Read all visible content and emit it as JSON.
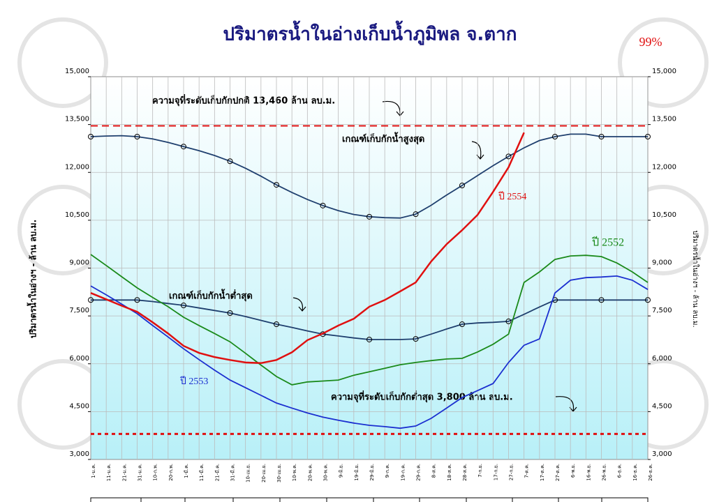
{
  "chart_data": {
    "type": "line",
    "title": "ปริมาตรน้ำในอ่างเก็บน้ำภูมิพล จ.ตาก",
    "subtitle": "99%",
    "ylabel": "ปริมาตรน้ำในอ่างฯ - ล้าน ลบ.ม.",
    "y2label": "ปริมาตรน้ำในอ่างฯ - ล้าน ลบ.ม.",
    "annotations": [
      "ความจุที่ระดับเก็บกักปกติ 13,460 ล้าน ลบ.ม.",
      "ความจุที่ระดับเก็บกักต่ำสุด 3,800 ล้าน ลบ.ม."
    ],
    "ref_lines": [
      {
        "value": 13460,
        "color": "#e01010"
      },
      {
        "value": 3800,
        "color": "#e01010"
      }
    ],
    "categories": [
      "1-ม.ค.",
      "11-ม.ค.",
      "21-ม.ค.",
      "31-ม.ค.",
      "10-ก.พ.",
      "20-ก.พ.",
      "1-มี.ค.",
      "11-มี.ค.",
      "21-มี.ค.",
      "31-มี.ค.",
      "10-เม.ย.",
      "20-เม.ย.",
      "30-เม.ย.",
      "10-พ.ค.",
      "20-พ.ค.",
      "30-พ.ค.",
      "9-มิ.ย.",
      "19-มิ.ย.",
      "29-มิ.ย.",
      "9-ก.ค.",
      "19-ก.ค.",
      "29-ก.ค.",
      "8-ส.ค.",
      "18-ส.ค.",
      "28-ส.ค.",
      "7-ก.ย.",
      "17-ก.ย.",
      "27-ก.ย.",
      "7-ต.ค.",
      "17-ต.ค.",
      "27-ต.ค.",
      "6-พ.ย.",
      "16-พ.ย.",
      "26-พ.ย.",
      "6-ธ.ค.",
      "16-ธ.ค.",
      "26-ธ.ค."
    ],
    "ylim": [
      3000,
      15000
    ],
    "yticks": [
      {
        "value": 3000,
        "label": "3,000"
      },
      {
        "value": 4500,
        "label": "4,500"
      },
      {
        "value": 6000,
        "label": "6,000"
      },
      {
        "value": 7500,
        "label": "7,500"
      },
      {
        "value": 9000,
        "label": "9,000"
      },
      {
        "value": 10500,
        "label": "10,500"
      },
      {
        "value": 12000,
        "label": "12,000"
      },
      {
        "value": 13500,
        "label": "13,500"
      },
      {
        "value": 15000,
        "label": "15,000"
      }
    ],
    "y2lim": [
      3000,
      15000
    ],
    "y2ticks": [
      {
        "value": 3000,
        "label": "3,000"
      },
      {
        "value": 4500,
        "label": "4,500"
      },
      {
        "value": 6000,
        "label": "6,000"
      },
      {
        "value": 7500,
        "label": "7,500"
      },
      {
        "value": 9000,
        "label": "9,000"
      },
      {
        "value": 10500,
        "label": "10,500"
      },
      {
        "value": 12000,
        "label": "12,000"
      },
      {
        "value": 13500,
        "label": "13,500"
      },
      {
        "value": 15000,
        "label": "15,000"
      }
    ],
    "grid": true,
    "series": [
      {
        "name": "เกณฑ์เก็บกักน้ำสูงสุด",
        "color": "#1f3f6e",
        "marker": "circle",
        "values": [
          13120,
          13140,
          13150,
          13120,
          13050,
          12940,
          12810,
          12680,
          12530,
          12350,
          12130,
          11880,
          11610,
          11370,
          11150,
          10960,
          10800,
          10680,
          10610,
          10580,
          10570,
          10690,
          10970,
          11290,
          11590,
          11900,
          12210,
          12500,
          12770,
          13000,
          13120,
          13200,
          13200,
          13120,
          13120,
          13120,
          13120
        ]
      },
      {
        "name": "เกณฑ์เก็บกักน้ำต่ำสุด",
        "color": "#1f3f6e",
        "marker": "circle",
        "values": [
          8000,
          8000,
          8000,
          8000,
          7950,
          7890,
          7830,
          7750,
          7670,
          7590,
          7480,
          7360,
          7240,
          7140,
          7030,
          6930,
          6870,
          6810,
          6760,
          6760,
          6760,
          6780,
          6930,
          7090,
          7240,
          7280,
          7300,
          7330,
          7550,
          7780,
          8000,
          8000,
          8000,
          8000,
          8000,
          8000,
          8000
        ]
      },
      {
        "name": "ปี 2552",
        "color": "#1a8a1a",
        "values": [
          9426,
          9080,
          8730,
          8380,
          8080,
          7790,
          7460,
          7200,
          6950,
          6690,
          6330,
          5960,
          5600,
          5340,
          5430,
          5460,
          5490,
          5640,
          5750,
          5860,
          5970,
          6040,
          6100,
          6150,
          6170,
          6370,
          6610,
          6930,
          8550,
          8880,
          9270,
          9380,
          9400,
          9360,
          9160,
          8880,
          8550
        ]
      },
      {
        "name": "ปี 2553",
        "color": "#1b2fd0",
        "values": [
          8440,
          8160,
          7870,
          7570,
          7200,
          6840,
          6470,
          6130,
          5800,
          5490,
          5250,
          5010,
          4770,
          4610,
          4460,
          4330,
          4230,
          4140,
          4070,
          4030,
          3980,
          4050,
          4290,
          4610,
          4940,
          5160,
          5380,
          6040,
          6580,
          6780,
          8220,
          8620,
          8700,
          8720,
          8750,
          8620,
          8330
        ]
      },
      {
        "name": "ปี 2554",
        "color": "#e01010",
        "width": 2.5,
        "values": [
          8220,
          8020,
          7820,
          7630,
          7300,
          6950,
          6560,
          6340,
          6210,
          6120,
          6040,
          6020,
          6120,
          6360,
          6740,
          6950,
          7200,
          7410,
          7790,
          8000,
          8270,
          8550,
          9210,
          9750,
          10190,
          10670,
          11390,
          12160,
          13250,
          null,
          null,
          null,
          null,
          null,
          null,
          null,
          null
        ]
      }
    ]
  }
}
